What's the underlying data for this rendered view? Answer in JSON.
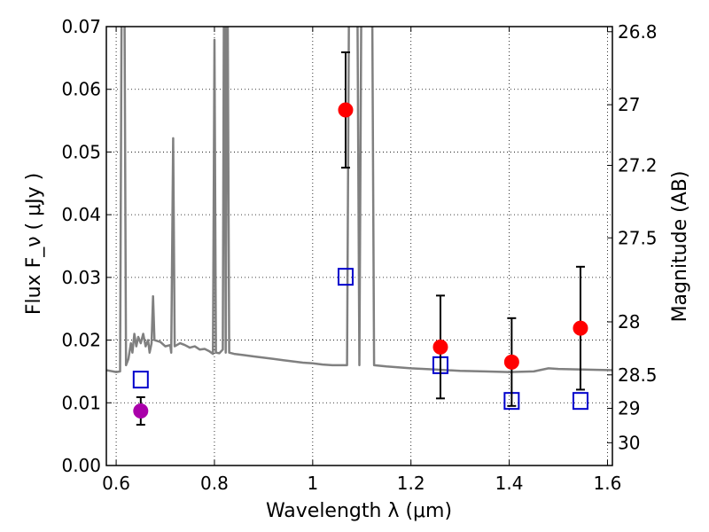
{
  "chart_data": {
    "type": "scatter",
    "xlabel": "Wavelength  λ (μm)",
    "ylabel": "Flux  F_ν  ( μJy )",
    "ylabel_right": "Magnitude (AB)",
    "xlim": [
      0.58,
      1.61
    ],
    "ylim": [
      0.0,
      0.07
    ],
    "grid": true,
    "x_ticks": [
      {
        "value": 0.6,
        "label": "0.6"
      },
      {
        "value": 0.8,
        "label": "0.8"
      },
      {
        "value": 1.0,
        "label": "1"
      },
      {
        "value": 1.2,
        "label": "1.2"
      },
      {
        "value": 1.4,
        "label": "1.4"
      },
      {
        "value": 1.6,
        "label": "1.6"
      }
    ],
    "y_ticks": [
      {
        "value": 0.0,
        "label": "0.00"
      },
      {
        "value": 0.01,
        "label": "0.01"
      },
      {
        "value": 0.02,
        "label": "0.02"
      },
      {
        "value": 0.03,
        "label": "0.03"
      },
      {
        "value": 0.04,
        "label": "0.04"
      },
      {
        "value": 0.05,
        "label": "0.05"
      },
      {
        "value": 0.06,
        "label": "0.06"
      },
      {
        "value": 0.07,
        "label": "0.07"
      }
    ],
    "right_ticks": [
      {
        "mag": 26.8,
        "label": "26.8"
      },
      {
        "mag": 27.0,
        "label": "27"
      },
      {
        "mag": 27.2,
        "label": "27.2"
      },
      {
        "mag": 27.5,
        "label": "27.5"
      },
      {
        "mag": 28.0,
        "label": "28"
      },
      {
        "mag": 28.5,
        "label": "28.5"
      },
      {
        "mag": 29.0,
        "label": "29"
      },
      {
        "mag": 30.0,
        "label": "30"
      }
    ],
    "model_spectrum": {
      "color": "#808080",
      "points": [
        [
          0.58,
          0.0152
        ],
        [
          0.6,
          0.0149
        ],
        [
          0.608,
          0.015
        ],
        [
          0.612,
          0.09
        ],
        [
          0.616,
          0.09
        ],
        [
          0.62,
          0.016
        ],
        [
          0.625,
          0.017
        ],
        [
          0.63,
          0.0195
        ],
        [
          0.633,
          0.018
        ],
        [
          0.637,
          0.021
        ],
        [
          0.641,
          0.019
        ],
        [
          0.645,
          0.0205
        ],
        [
          0.65,
          0.0195
        ],
        [
          0.655,
          0.021
        ],
        [
          0.66,
          0.019
        ],
        [
          0.665,
          0.02
        ],
        [
          0.668,
          0.018
        ],
        [
          0.672,
          0.0195
        ],
        [
          0.675,
          0.027
        ],
        [
          0.678,
          0.02
        ],
        [
          0.69,
          0.0197
        ],
        [
          0.7,
          0.019
        ],
        [
          0.71,
          0.0192
        ],
        [
          0.712,
          0.018
        ],
        [
          0.716,
          0.0522
        ],
        [
          0.719,
          0.019
        ],
        [
          0.73,
          0.0195
        ],
        [
          0.74,
          0.0192
        ],
        [
          0.75,
          0.0188
        ],
        [
          0.76,
          0.019
        ],
        [
          0.77,
          0.0185
        ],
        [
          0.78,
          0.0186
        ],
        [
          0.79,
          0.0182
        ],
        [
          0.797,
          0.0178
        ],
        [
          0.8,
          0.0679
        ],
        [
          0.803,
          0.018
        ],
        [
          0.81,
          0.0179
        ],
        [
          0.817,
          0.0185
        ],
        [
          0.82,
          0.09
        ],
        [
          0.823,
          0.018
        ],
        [
          0.826,
          0.09
        ],
        [
          0.83,
          0.018
        ],
        [
          0.84,
          0.0178
        ],
        [
          0.86,
          0.0176
        ],
        [
          0.88,
          0.0174
        ],
        [
          0.9,
          0.0172
        ],
        [
          0.92,
          0.017
        ],
        [
          0.94,
          0.0168
        ],
        [
          0.96,
          0.0166
        ],
        [
          0.98,
          0.0164
        ],
        [
          1.0,
          0.0163
        ],
        [
          1.02,
          0.0161
        ],
        [
          1.04,
          0.016
        ],
        [
          1.07,
          0.016
        ],
        [
          1.075,
          0.09
        ],
        [
          1.09,
          0.09
        ],
        [
          1.095,
          0.016
        ],
        [
          1.1,
          0.09
        ],
        [
          1.12,
          0.09
        ],
        [
          1.125,
          0.016
        ],
        [
          1.15,
          0.0158
        ],
        [
          1.2,
          0.0155
        ],
        [
          1.25,
          0.0153
        ],
        [
          1.3,
          0.0151
        ],
        [
          1.35,
          0.015
        ],
        [
          1.4,
          0.0149
        ],
        [
          1.45,
          0.015
        ],
        [
          1.48,
          0.0155
        ],
        [
          1.5,
          0.0154
        ],
        [
          1.55,
          0.0153
        ],
        [
          1.61,
          0.0152
        ]
      ]
    },
    "series": [
      {
        "marker": "filled-circle",
        "color": "#ff0000",
        "points": [
          {
            "x": 1.067,
            "y": 0.0567,
            "err_lo": 0.0092,
            "err_hi": 0.0092
          },
          {
            "x": 1.26,
            "y": 0.0189,
            "err_lo": 0.0082,
            "err_hi": 0.0082
          },
          {
            "x": 1.405,
            "y": 0.0165,
            "err_lo": 0.007,
            "err_hi": 0.007
          },
          {
            "x": 1.545,
            "y": 0.0219,
            "err_lo": 0.0098,
            "err_hi": 0.0098
          }
        ]
      },
      {
        "marker": "filled-circle",
        "color": "#aa00aa",
        "points": [
          {
            "x": 0.65,
            "y": 0.0087,
            "err_lo": 0.0022,
            "err_hi": 0.0022
          }
        ]
      },
      {
        "marker": "open-square",
        "color": "#0000cc",
        "points": [
          {
            "x": 0.65,
            "y": 0.0137
          },
          {
            "x": 1.067,
            "y": 0.0301
          },
          {
            "x": 1.26,
            "y": 0.016
          },
          {
            "x": 1.405,
            "y": 0.0103
          },
          {
            "x": 1.545,
            "y": 0.0103
          }
        ]
      }
    ]
  }
}
